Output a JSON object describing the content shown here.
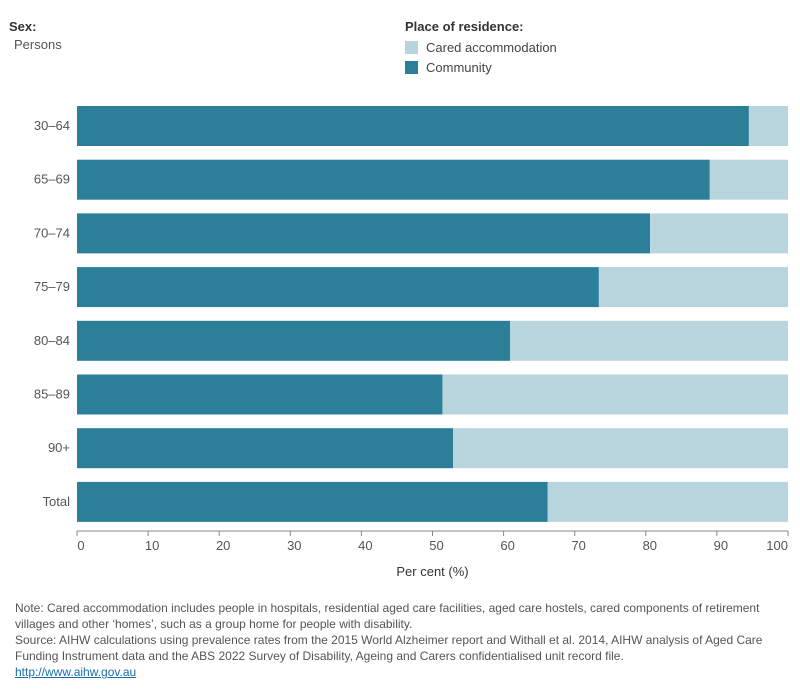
{
  "filter": {
    "label": "Sex:",
    "value": "Persons"
  },
  "legend": {
    "title": "Place of residence:",
    "items": [
      {
        "label": "Cared accommodation",
        "color": "#b8d5de"
      },
      {
        "label": "Community",
        "color": "#2b7f99"
      }
    ]
  },
  "chart_data": {
    "type": "bar",
    "orientation": "horizontal",
    "stacked": true,
    "categories": [
      "30–64",
      "65–69",
      "70–74",
      "75–79",
      "80–84",
      "85–89",
      "90+",
      "Total"
    ],
    "series": [
      {
        "name": "Community",
        "color": "#2b7f99",
        "values": [
          94.5,
          89.0,
          80.6,
          73.4,
          60.9,
          51.4,
          52.9,
          66.2
        ]
      },
      {
        "name": "Cared accommodation",
        "color": "#b8d5de",
        "values": [
          5.5,
          11.0,
          19.4,
          26.6,
          39.1,
          48.6,
          47.1,
          33.8
        ]
      }
    ],
    "xlabel": "Per cent (%)",
    "xlim": [
      0,
      100
    ],
    "xticks": [
      0,
      10,
      20,
      30,
      40,
      50,
      60,
      70,
      80,
      90,
      100
    ],
    "grid": false,
    "legend_position": "top"
  },
  "notes": {
    "note": "Note: Cared accommodation includes people in hospitals, residential aged care facilities, aged care hostels, cared components of retirement villages and other ‘homes’, such as a group home for people with disability.",
    "source": "Source: AIHW calculations using prevalence rates from the 2015 World Alzheimer report and Withall et al. 2014, AIHW analysis of Aged Care Funding Instrument data and the ABS 2022 Survey of Disability, Ageing and Carers confidentialised unit record file.",
    "link": "http://www.aihw.gov.au"
  }
}
